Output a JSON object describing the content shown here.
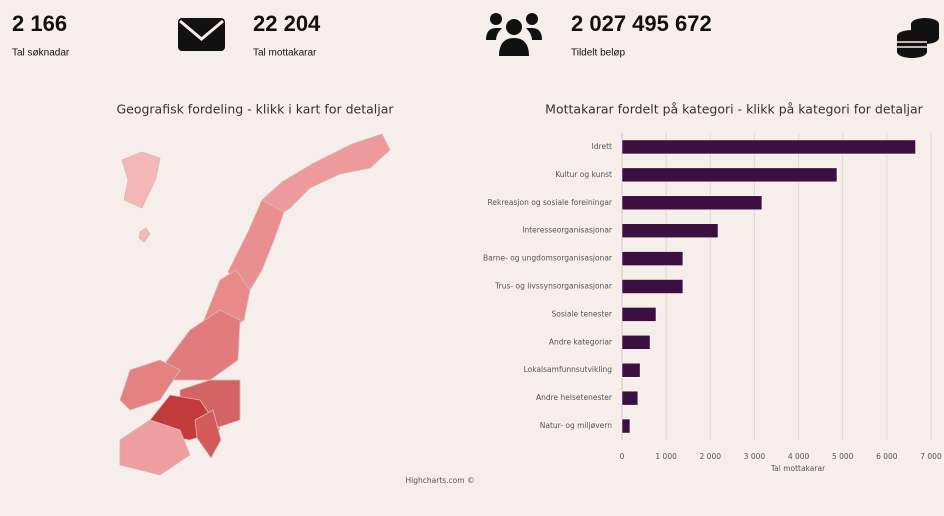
{
  "stats": [
    {
      "value": "2 166",
      "label": "Tal søknadar"
    },
    {
      "value": "22 204",
      "label": "Tal mottakarar"
    },
    {
      "value": "2 027 495 672",
      "label": "Tildelt beløp"
    }
  ],
  "map": {
    "title": "Geografisk fordeling - klikk i kart for detaljar",
    "credit": "Highcharts.com ©"
  },
  "chart_data": {
    "type": "hbar",
    "title": "Mottakarar fordelt på kategori - klikk på kategori for detaljar",
    "xlabel": "Tal mottakarar",
    "categories": [
      "Idrett",
      "Kultur og kunst",
      "Rekreasjon og sosiale foreiningar",
      "Interesseorganisasjonar",
      "Barne- og ungdomsorganisasjonar",
      "Trus- og livssynsorganisasjonar",
      "Sosiale tenester",
      "Andre kategoriar",
      "Lokalsamfunnsutvikling",
      "Andre helsetenester",
      "Natur- og miljøvern"
    ],
    "values": [
      6650,
      4870,
      3170,
      2175,
      1380,
      1380,
      770,
      635,
      410,
      360,
      180
    ],
    "color": "#3b0f40",
    "xlim": [
      0,
      7000
    ],
    "xticks": [
      0,
      {
        "value": 1000,
        "label": "1 000"
      },
      {
        "value": 2000,
        "label": "2 000"
      },
      {
        "value": 3000,
        "label": "3 000"
      },
      {
        "value": 4000,
        "label": "4 000"
      },
      {
        "value": 5000,
        "label": "5 000"
      },
      {
        "value": 6000,
        "label": "6 000"
      },
      {
        "value": 7000,
        "label": "7 000"
      }
    ],
    "grid": true
  }
}
